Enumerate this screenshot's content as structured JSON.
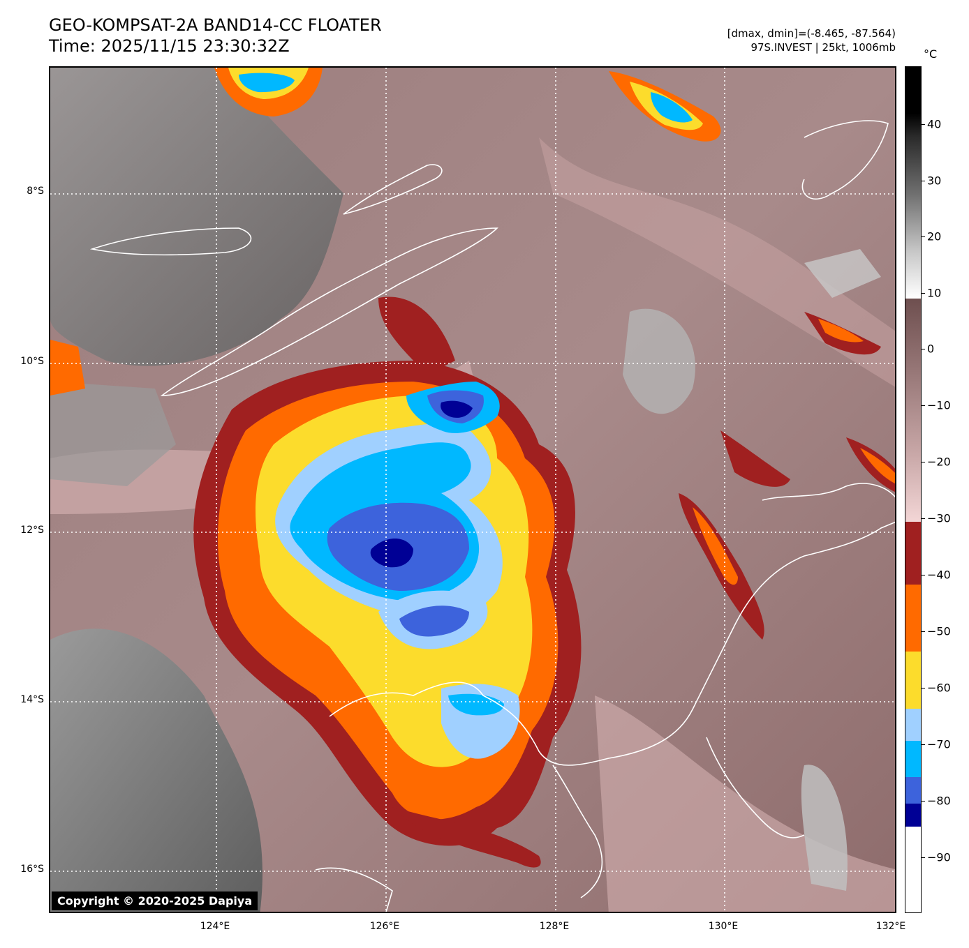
{
  "header": {
    "title_line1": "GEO-KOMPSAT-2A BAND14-CC FLOATER",
    "title_line2": "Time: 2025/11/15 23:30:32Z",
    "dmax_dmin": "[dmax, dmin]=(-8.465, -87.564)",
    "storm_info": "97S.INVEST | 25kt, 1006mb"
  },
  "map": {
    "lat_labels": [
      "8°S",
      "10°S",
      "12°S",
      "14°S",
      "16°S"
    ],
    "lon_labels": [
      "124°E",
      "126°E",
      "128°E",
      "130°E",
      "132°E"
    ],
    "copyright": "Copyright © 2020-2025 Dapiya"
  },
  "colorbar": {
    "unit": "°C",
    "ticks": [
      "40",
      "30",
      "20",
      "10",
      "0",
      "−10",
      "−20",
      "−30",
      "−40",
      "−50",
      "−60",
      "−70",
      "−80",
      "−90"
    ],
    "colors": {
      "black_top": "#000000",
      "white_10": "#ffffff",
      "warm_brown": "#6e4f4f",
      "pink": "#f3d6d6",
      "dark_red": "#a02020",
      "orange": "#ff6a00",
      "yellow": "#fcdc2c",
      "light_blue": "#a0d0ff",
      "cyan": "#00b8ff",
      "blue": "#3d63dc",
      "navy": "#000095",
      "white_bottom": "#ffffff"
    }
  }
}
